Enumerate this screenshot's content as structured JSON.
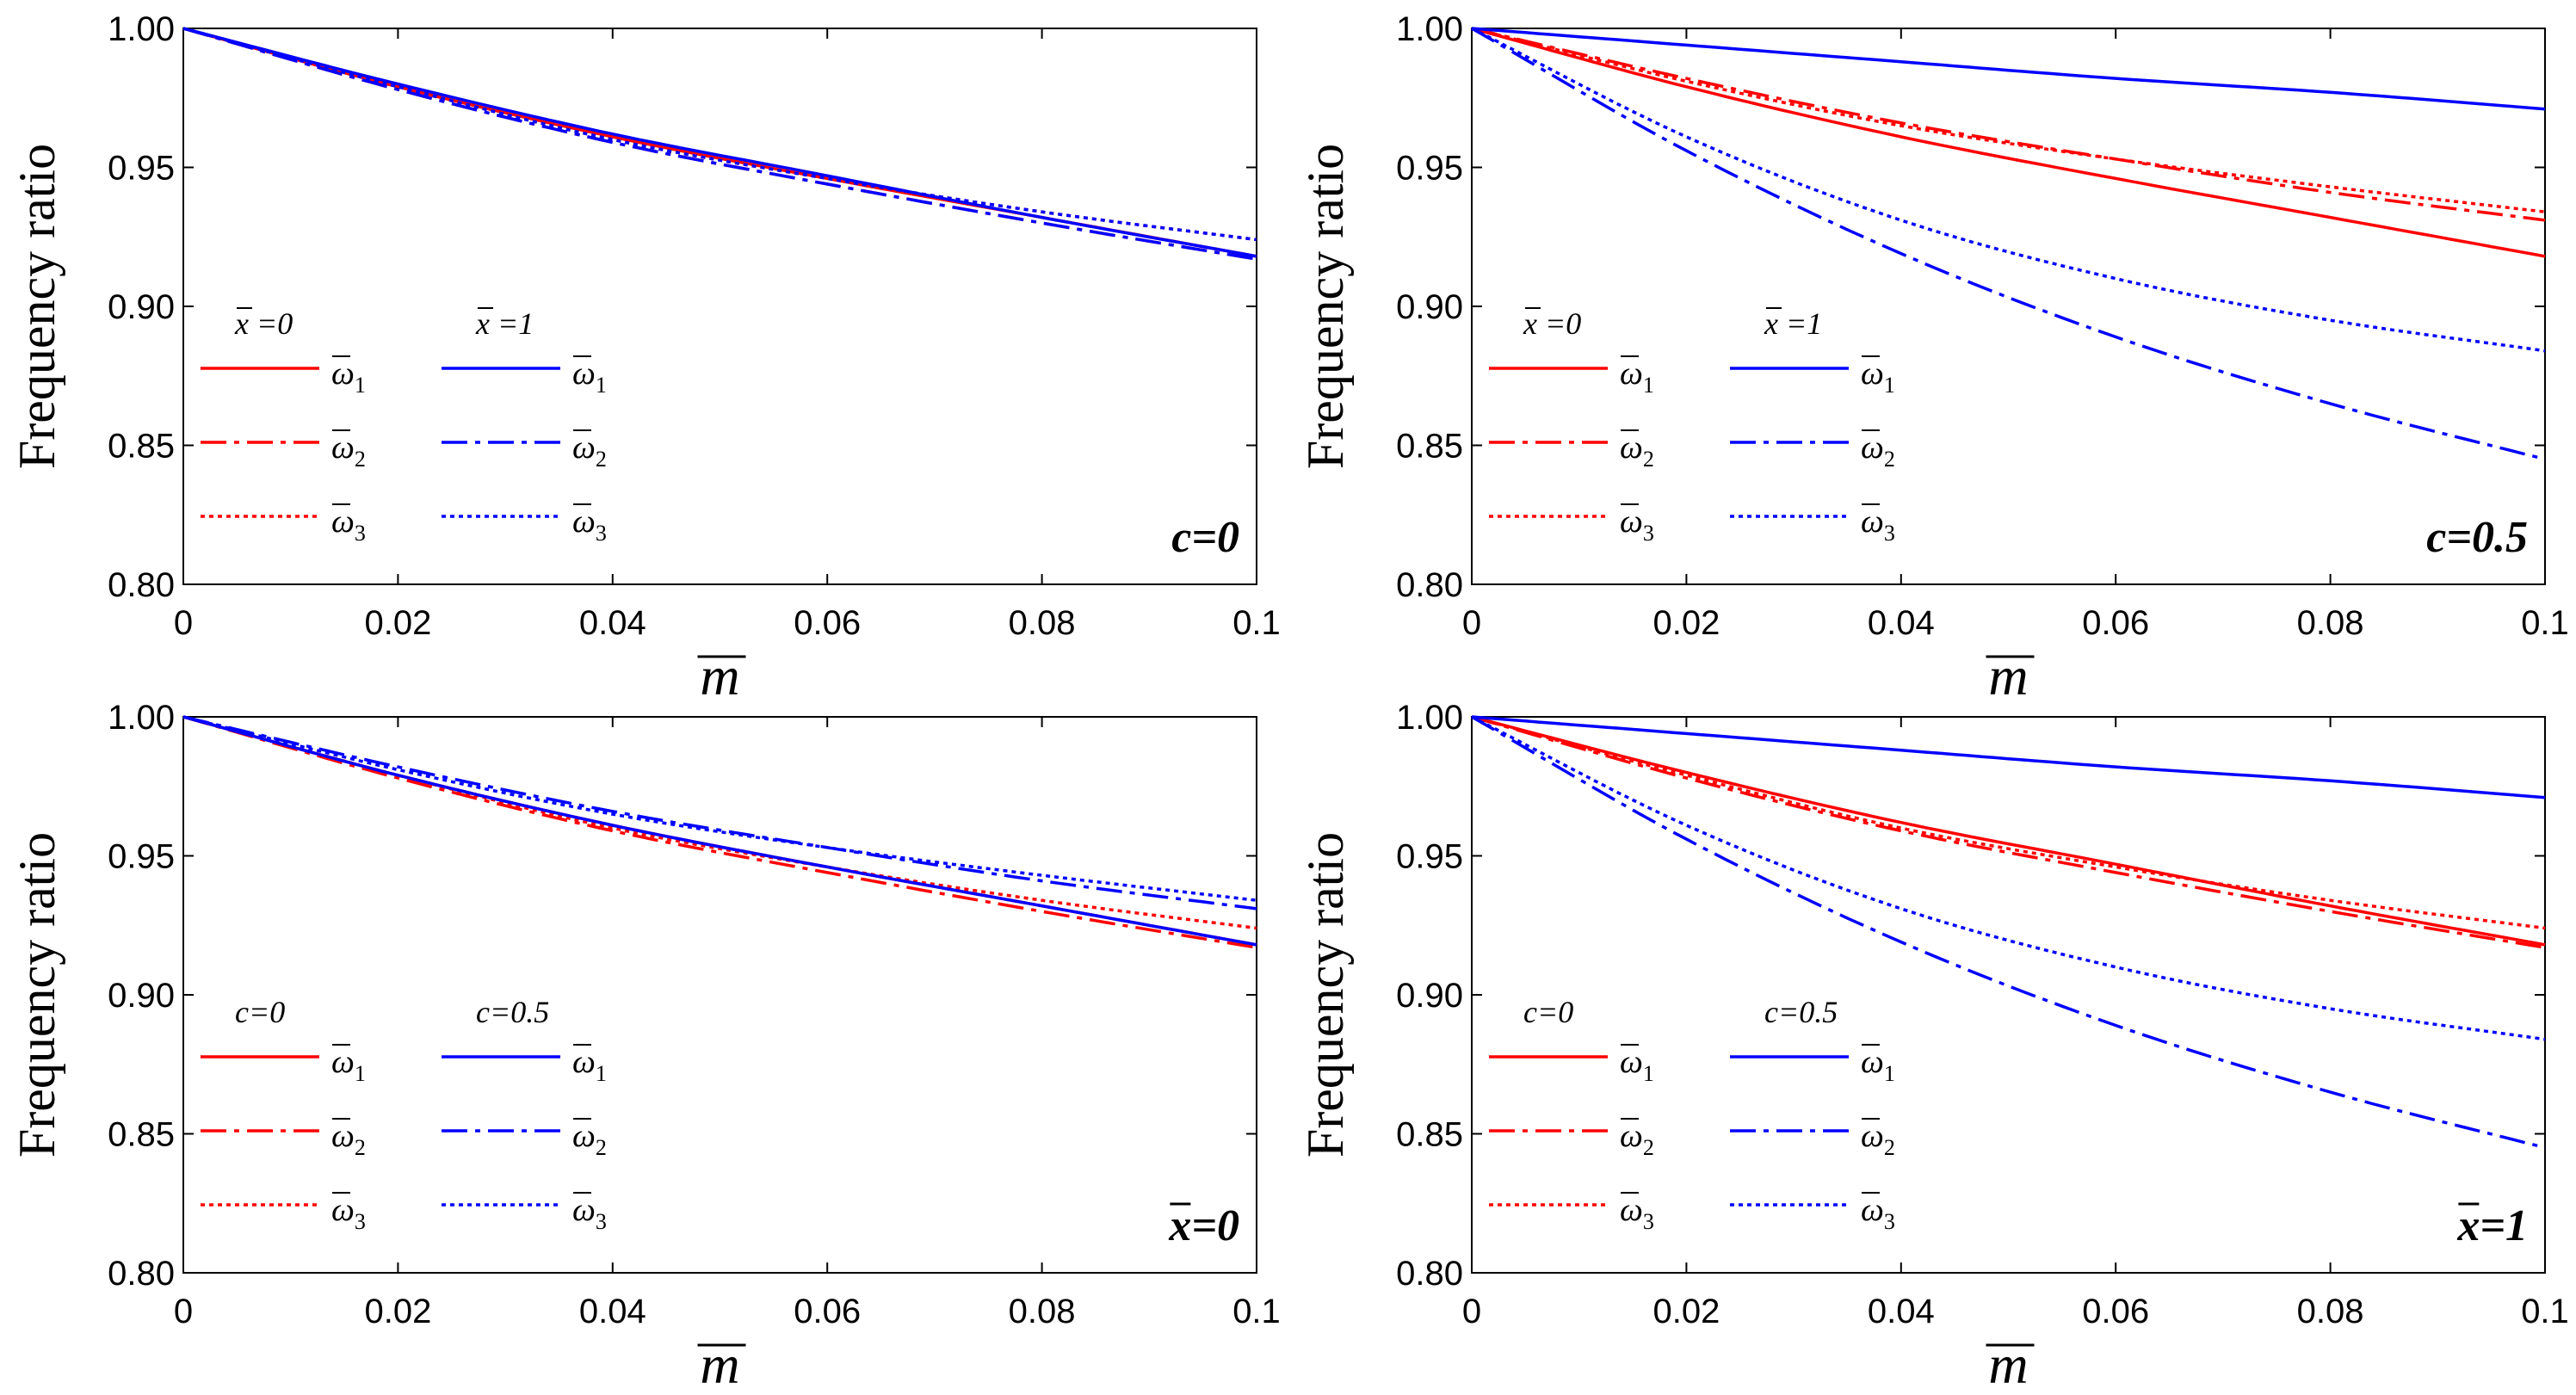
{
  "colors": {
    "red": "#ff0000",
    "blue": "#0000ff",
    "axis": "#000000"
  },
  "chart_data": [
    {
      "type": "line",
      "annotation": "c=0",
      "ylabel": "Frequency ratio",
      "xlabel": "m",
      "xlim": [
        0,
        0.1
      ],
      "ylim": [
        0.8,
        1.0
      ],
      "xticks": [
        "0",
        "0.02",
        "0.04",
        "0.06",
        "0.08",
        "0.1"
      ],
      "yticks": [
        "0.80",
        "0.85",
        "0.90",
        "0.95",
        "1.00"
      ],
      "legend": {
        "group_headers": [
          "x =0",
          "x =1"
        ],
        "entries": [
          {
            "symbol": "ω",
            "sub": "1"
          },
          {
            "symbol": "ω",
            "sub": "2"
          },
          {
            "symbol": "ω",
            "sub": "3"
          },
          {
            "symbol": "ω",
            "sub": "1"
          },
          {
            "symbol": "ω",
            "sub": "2"
          },
          {
            "symbol": "ω",
            "sub": "3"
          }
        ]
      },
      "series": [
        {
          "name": "x=0 ω1",
          "color": "red",
          "dash": "solid",
          "x": [
            0,
            0.02,
            0.04,
            0.06,
            0.08,
            0.1
          ],
          "values": [
            1.0,
            0.979,
            0.961,
            0.946,
            0.932,
            0.918
          ]
        },
        {
          "name": "x=0 ω2",
          "color": "red",
          "dash": "dashdot",
          "x": [
            0,
            0.02,
            0.04,
            0.06,
            0.08,
            0.1
          ],
          "values": [
            1.0,
            0.978,
            0.959,
            0.944,
            0.93,
            0.917
          ]
        },
        {
          "name": "x=0 ω3",
          "color": "red",
          "dash": "dot",
          "x": [
            0,
            0.02,
            0.04,
            0.06,
            0.08,
            0.1
          ],
          "values": [
            1.0,
            0.979,
            0.96,
            0.946,
            0.934,
            0.924
          ]
        },
        {
          "name": "x=1 ω1",
          "color": "blue",
          "dash": "solid",
          "x": [
            0,
            0.02,
            0.04,
            0.06,
            0.08,
            0.1
          ],
          "values": [
            1.0,
            0.98,
            0.962,
            0.947,
            0.932,
            0.918
          ]
        },
        {
          "name": "x=1 ω2",
          "color": "blue",
          "dash": "dashdot",
          "x": [
            0,
            0.02,
            0.04,
            0.06,
            0.08,
            0.1
          ],
          "values": [
            1.0,
            0.978,
            0.959,
            0.944,
            0.93,
            0.917
          ]
        },
        {
          "name": "x=1 ω3",
          "color": "blue",
          "dash": "dot",
          "x": [
            0,
            0.02,
            0.04,
            0.06,
            0.08,
            0.1
          ],
          "values": [
            1.0,
            0.979,
            0.96,
            0.946,
            0.934,
            0.924
          ]
        }
      ]
    },
    {
      "type": "line",
      "annotation": "c=0.5",
      "ylabel": "Frequency ratio",
      "xlabel": "m",
      "xlim": [
        0,
        0.1
      ],
      "ylim": [
        0.8,
        1.0
      ],
      "xticks": [
        "0",
        "0.02",
        "0.04",
        "0.06",
        "0.08",
        "0.1"
      ],
      "yticks": [
        "0.80",
        "0.85",
        "0.90",
        "0.95",
        "1.00"
      ],
      "legend": {
        "group_headers": [
          "x =0",
          "x =1"
        ],
        "entries": [
          {
            "symbol": "ω",
            "sub": "1"
          },
          {
            "symbol": "ω",
            "sub": "2"
          },
          {
            "symbol": "ω",
            "sub": "3"
          },
          {
            "symbol": "ω",
            "sub": "1"
          },
          {
            "symbol": "ω",
            "sub": "2"
          },
          {
            "symbol": "ω",
            "sub": "3"
          }
        ]
      },
      "series": [
        {
          "name": "x=0 ω1",
          "color": "red",
          "dash": "solid",
          "x": [
            0,
            0.02,
            0.04,
            0.06,
            0.08,
            0.1
          ],
          "values": [
            1.0,
            0.979,
            0.961,
            0.946,
            0.932,
            0.918
          ]
        },
        {
          "name": "x=0 ω2",
          "color": "red",
          "dash": "dashdot",
          "x": [
            0,
            0.02,
            0.04,
            0.06,
            0.08,
            0.1
          ],
          "values": [
            1.0,
            0.982,
            0.966,
            0.953,
            0.941,
            0.931
          ]
        },
        {
          "name": "x=0 ω3",
          "color": "red",
          "dash": "dot",
          "x": [
            0,
            0.02,
            0.04,
            0.06,
            0.08,
            0.1
          ],
          "values": [
            1.0,
            0.981,
            0.965,
            0.953,
            0.943,
            0.934
          ]
        },
        {
          "name": "x=1 ω1",
          "color": "blue",
          "dash": "solid",
          "x": [
            0,
            0.02,
            0.04,
            0.06,
            0.08,
            0.1
          ],
          "values": [
            1.0,
            0.994,
            0.988,
            0.982,
            0.977,
            0.971
          ]
        },
        {
          "name": "x=1 ω2",
          "color": "blue",
          "dash": "dashdot",
          "x": [
            0,
            0.02,
            0.04,
            0.06,
            0.08,
            0.1
          ],
          "values": [
            1.0,
            0.956,
            0.919,
            0.889,
            0.865,
            0.845
          ]
        },
        {
          "name": "x=1 ω3",
          "color": "blue",
          "dash": "dot",
          "x": [
            0,
            0.02,
            0.04,
            0.06,
            0.08,
            0.1
          ],
          "values": [
            1.0,
            0.961,
            0.931,
            0.91,
            0.895,
            0.884
          ]
        }
      ]
    },
    {
      "type": "line",
      "annotation": "x=0",
      "ylabel": "Frequency ratio",
      "xlabel": "m",
      "xlim": [
        0,
        0.1
      ],
      "ylim": [
        0.8,
        1.0
      ],
      "xticks": [
        "0",
        "0.02",
        "0.04",
        "0.06",
        "0.08",
        "0.1"
      ],
      "yticks": [
        "0.80",
        "0.85",
        "0.90",
        "0.95",
        "1.00"
      ],
      "legend": {
        "group_headers": [
          "c=0",
          "c=0.5"
        ],
        "entries": [
          {
            "symbol": "ω",
            "sub": "1"
          },
          {
            "symbol": "ω",
            "sub": "2"
          },
          {
            "symbol": "ω",
            "sub": "3"
          },
          {
            "symbol": "ω",
            "sub": "1"
          },
          {
            "symbol": "ω",
            "sub": "2"
          },
          {
            "symbol": "ω",
            "sub": "3"
          }
        ]
      },
      "series": [
        {
          "name": "c=0 ω1",
          "color": "red",
          "dash": "solid",
          "x": [
            0,
            0.02,
            0.04,
            0.06,
            0.08,
            0.1
          ],
          "values": [
            1.0,
            0.979,
            0.961,
            0.946,
            0.932,
            0.918
          ]
        },
        {
          "name": "c=0 ω2",
          "color": "red",
          "dash": "dashdot",
          "x": [
            0,
            0.02,
            0.04,
            0.06,
            0.08,
            0.1
          ],
          "values": [
            1.0,
            0.978,
            0.959,
            0.944,
            0.93,
            0.917
          ]
        },
        {
          "name": "c=0 ω3",
          "color": "red",
          "dash": "dot",
          "x": [
            0,
            0.02,
            0.04,
            0.06,
            0.08,
            0.1
          ],
          "values": [
            1.0,
            0.979,
            0.96,
            0.946,
            0.934,
            0.924
          ]
        },
        {
          "name": "c=0.5 ω1",
          "color": "blue",
          "dash": "solid",
          "x": [
            0,
            0.02,
            0.04,
            0.06,
            0.08,
            0.1
          ],
          "values": [
            1.0,
            0.979,
            0.961,
            0.946,
            0.932,
            0.918
          ]
        },
        {
          "name": "c=0.5 ω2",
          "color": "blue",
          "dash": "dashdot",
          "x": [
            0,
            0.02,
            0.04,
            0.06,
            0.08,
            0.1
          ],
          "values": [
            1.0,
            0.982,
            0.966,
            0.953,
            0.941,
            0.931
          ]
        },
        {
          "name": "c=0.5 ω3",
          "color": "blue",
          "dash": "dot",
          "x": [
            0,
            0.02,
            0.04,
            0.06,
            0.08,
            0.1
          ],
          "values": [
            1.0,
            0.981,
            0.965,
            0.953,
            0.943,
            0.934
          ]
        }
      ]
    },
    {
      "type": "line",
      "annotation": "x=1",
      "ylabel": "Frequency ratio",
      "xlabel": "m",
      "xlim": [
        0,
        0.1
      ],
      "ylim": [
        0.8,
        1.0
      ],
      "xticks": [
        "0",
        "0.02",
        "0.04",
        "0.06",
        "0.08",
        "0.1"
      ],
      "yticks": [
        "0.80",
        "0.85",
        "0.90",
        "0.95",
        "1.00"
      ],
      "legend": {
        "group_headers": [
          "c=0",
          "c=0.5"
        ],
        "entries": [
          {
            "symbol": "ω",
            "sub": "1"
          },
          {
            "symbol": "ω",
            "sub": "2"
          },
          {
            "symbol": "ω",
            "sub": "3"
          },
          {
            "symbol": "ω",
            "sub": "1"
          },
          {
            "symbol": "ω",
            "sub": "2"
          },
          {
            "symbol": "ω",
            "sub": "3"
          }
        ]
      },
      "series": [
        {
          "name": "c=0 ω1",
          "color": "red",
          "dash": "solid",
          "x": [
            0,
            0.02,
            0.04,
            0.06,
            0.08,
            0.1
          ],
          "values": [
            1.0,
            0.98,
            0.962,
            0.947,
            0.932,
            0.918
          ]
        },
        {
          "name": "c=0 ω2",
          "color": "red",
          "dash": "dashdot",
          "x": [
            0,
            0.02,
            0.04,
            0.06,
            0.08,
            0.1
          ],
          "values": [
            1.0,
            0.978,
            0.959,
            0.944,
            0.93,
            0.917
          ]
        },
        {
          "name": "c=0 ω3",
          "color": "red",
          "dash": "dot",
          "x": [
            0,
            0.02,
            0.04,
            0.06,
            0.08,
            0.1
          ],
          "values": [
            1.0,
            0.979,
            0.96,
            0.946,
            0.934,
            0.924
          ]
        },
        {
          "name": "c=0.5 ω1",
          "color": "blue",
          "dash": "solid",
          "x": [
            0,
            0.02,
            0.04,
            0.06,
            0.08,
            0.1
          ],
          "values": [
            1.0,
            0.994,
            0.988,
            0.982,
            0.977,
            0.971
          ]
        },
        {
          "name": "c=0.5 ω2",
          "color": "blue",
          "dash": "dashdot",
          "x": [
            0,
            0.02,
            0.04,
            0.06,
            0.08,
            0.1
          ],
          "values": [
            1.0,
            0.956,
            0.919,
            0.889,
            0.865,
            0.845
          ]
        },
        {
          "name": "c=0.5 ω3",
          "color": "blue",
          "dash": "dot",
          "x": [
            0,
            0.02,
            0.04,
            0.06,
            0.08,
            0.1
          ],
          "values": [
            1.0,
            0.961,
            0.931,
            0.91,
            0.895,
            0.884
          ]
        }
      ]
    }
  ]
}
